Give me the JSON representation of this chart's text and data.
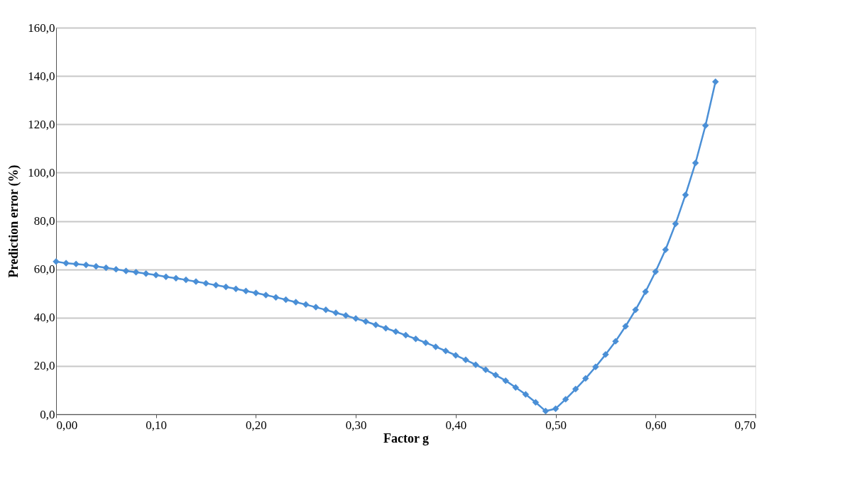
{
  "chart_data": {
    "type": "line",
    "xlabel": "Factor g",
    "ylabel": "Prediction error  (%)",
    "x": [
      0,
      0.01,
      0.02,
      0.03,
      0.04,
      0.05,
      0.06,
      0.07,
      0.08,
      0.09,
      0.1,
      0.11,
      0.12,
      0.13,
      0.14,
      0.15,
      0.16,
      0.17,
      0.18,
      0.19,
      0.2,
      0.21,
      0.22,
      0.23,
      0.24,
      0.25,
      0.26,
      0.27,
      0.28,
      0.29,
      0.3,
      0.31,
      0.32,
      0.33,
      0.34,
      0.35,
      0.36,
      0.37,
      0.38,
      0.39,
      0.4,
      0.41,
      0.42,
      0.43,
      0.44,
      0.45,
      0.46,
      0.47,
      0.48,
      0.49,
      0.5,
      0.51,
      0.52,
      0.53,
      0.54,
      0.55,
      0.56,
      0.57,
      0.58,
      0.59,
      0.6,
      0.61,
      0.62,
      0.63,
      0.64,
      0.65,
      0.66
    ],
    "series": [
      {
        "color": "#4a8fd6",
        "values": [
          63.2,
          62.5,
          62.2,
          61.8,
          61.2,
          60.6,
          60.0,
          59.3,
          58.8,
          58.2,
          57.6,
          56.9,
          56.3,
          55.6,
          54.9,
          54.2,
          53.4,
          52.7,
          51.9,
          51.0,
          50.2,
          49.3,
          48.4,
          47.4,
          46.4,
          45.4,
          44.3,
          43.2,
          42.0,
          40.9,
          39.6,
          38.4,
          37.0,
          35.6,
          34.2,
          32.7,
          31.2,
          29.6,
          27.9,
          26.2,
          24.4,
          22.5,
          20.5,
          18.4,
          16.2,
          13.9,
          11.1,
          8.2,
          4.9,
          1.3,
          2.3,
          6.2,
          10.4,
          14.8,
          19.6,
          24.7,
          30.2,
          36.4,
          43.2,
          50.7,
          59.0,
          68.1,
          78.8,
          90.8,
          104.0,
          119.5,
          137.6
        ]
      }
    ],
    "xlim": [
      0,
      0.7
    ],
    "xticks": [
      {
        "value": 0,
        "label": "0,00"
      },
      {
        "value": 0.1,
        "label": "0,10"
      },
      {
        "value": 0.2,
        "label": "0,20"
      },
      {
        "value": 0.3,
        "label": "0,30"
      },
      {
        "value": 0.4,
        "label": "0,40"
      },
      {
        "value": 0.5,
        "label": "0,50"
      },
      {
        "value": 0.6,
        "label": "0,60"
      },
      {
        "value": 0.7,
        "label": "0,70"
      }
    ],
    "ylim": [
      0,
      160
    ],
    "yticks": [
      {
        "value": 0,
        "label": "0,0"
      },
      {
        "value": 20,
        "label": "20,0"
      },
      {
        "value": 40,
        "label": "40,0"
      },
      {
        "value": 60,
        "label": "60,0"
      },
      {
        "value": 80,
        "label": "80,0"
      },
      {
        "value": 100,
        "label": "100,0"
      },
      {
        "value": 120,
        "label": "120,0"
      },
      {
        "value": 140,
        "label": "140,0"
      },
      {
        "value": 160,
        "label": "160,0"
      }
    ],
    "grid": "y",
    "marker": "diamond",
    "line_style": "solid"
  }
}
